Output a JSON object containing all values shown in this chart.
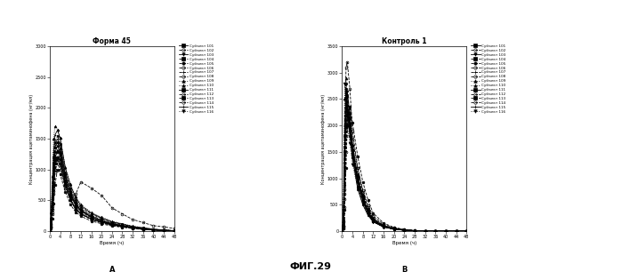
{
  "title_left": "Форма 45",
  "title_right": "Контроль 1",
  "fig_title": "ФИГ.29",
  "xlabel": "Время (ч)",
  "ylabel": "Концентрация ацетаминофена (нг/мл)",
  "label_A": "А",
  "label_B": "В",
  "xlim": [
    0,
    48
  ],
  "xticks": [
    0,
    4,
    8,
    12,
    16,
    20,
    24,
    28,
    32,
    36,
    40,
    44,
    48
  ],
  "ylim_left": [
    0,
    3000
  ],
  "ylim_right": [
    0,
    3500
  ],
  "yticks_left": [
    0,
    500,
    1000,
    1500,
    2000,
    2500,
    3000
  ],
  "yticks_right": [
    0,
    500,
    1000,
    1500,
    2000,
    2500,
    3000,
    3500
  ],
  "subjects": [
    "Субъект 101",
    "Субъект 102",
    "Субъект 103",
    "Субъект 104",
    "Субъект 105",
    "Субъект 106",
    "Субъект 107",
    "Субъект 108",
    "Субъект 109",
    "Субъект 110",
    "Субъект 111",
    "Субъект 112",
    "Субъект 113",
    "Субъект 114",
    "Субъект 115",
    "Субъект 116"
  ],
  "time_points": [
    0,
    0.5,
    1,
    1.5,
    2,
    3,
    4,
    6,
    8,
    10,
    12,
    16,
    20,
    24,
    28,
    32,
    36,
    40,
    44,
    48
  ],
  "data_left": [
    [
      0,
      150,
      600,
      1100,
      1200,
      1300,
      1250,
      800,
      500,
      350,
      280,
      200,
      150,
      100,
      80,
      60,
      40,
      25,
      15,
      8
    ],
    [
      0,
      80,
      350,
      700,
      1000,
      1100,
      1000,
      700,
      500,
      600,
      800,
      700,
      580,
      380,
      280,
      190,
      140,
      90,
      70,
      45
    ],
    [
      0,
      120,
      500,
      850,
      1100,
      1200,
      1150,
      800,
      580,
      430,
      340,
      230,
      165,
      110,
      82,
      55,
      36,
      22,
      13,
      7
    ],
    [
      0,
      200,
      700,
      1200,
      1450,
      1550,
      1420,
      960,
      690,
      510,
      390,
      280,
      205,
      148,
      112,
      76,
      52,
      32,
      18,
      9
    ],
    [
      0,
      50,
      200,
      450,
      750,
      1000,
      920,
      640,
      430,
      310,
      245,
      165,
      120,
      84,
      65,
      43,
      28,
      17,
      10,
      5
    ],
    [
      0,
      100,
      400,
      800,
      1100,
      1200,
      1100,
      760,
      520,
      375,
      290,
      200,
      148,
      103,
      78,
      52,
      35,
      21,
      12,
      6
    ],
    [
      0,
      180,
      650,
      1150,
      1400,
      1500,
      1380,
      930,
      660,
      480,
      368,
      255,
      188,
      132,
      100,
      67,
      46,
      28,
      16,
      8
    ],
    [
      0,
      60,
      280,
      600,
      950,
      1150,
      1070,
      740,
      500,
      365,
      278,
      190,
      138,
      96,
      73,
      49,
      32,
      19,
      11,
      6
    ],
    [
      0,
      300,
      900,
      1500,
      1700,
      1650,
      1510,
      1040,
      760,
      565,
      435,
      305,
      228,
      162,
      122,
      83,
      57,
      35,
      19,
      10
    ],
    [
      0,
      90,
      380,
      770,
      1150,
      1280,
      1190,
      820,
      570,
      405,
      314,
      218,
      160,
      112,
      85,
      56,
      37,
      23,
      13,
      7
    ],
    [
      0,
      130,
      520,
      930,
      1280,
      1380,
      1280,
      875,
      610,
      435,
      335,
      230,
      168,
      117,
      88,
      59,
      39,
      24,
      14,
      7
    ],
    [
      0,
      70,
      300,
      650,
      1000,
      1180,
      1090,
      755,
      510,
      368,
      280,
      192,
      138,
      97,
      73,
      49,
      32,
      19,
      11,
      5
    ],
    [
      0,
      160,
      580,
      1030,
      1350,
      1450,
      1340,
      910,
      638,
      456,
      347,
      242,
      176,
      124,
      93,
      62,
      41,
      25,
      14,
      7
    ],
    [
      0,
      110,
      450,
      860,
      1200,
      1320,
      1230,
      845,
      588,
      421,
      320,
      222,
      162,
      114,
      86,
      57,
      38,
      23,
      13,
      7
    ],
    [
      0,
      220,
      750,
      1290,
      1560,
      1640,
      1510,
      1030,
      742,
      547,
      417,
      292,
      215,
      153,
      115,
      77,
      53,
      32,
      18,
      9
    ],
    [
      0,
      140,
      550,
      980,
      1350,
      1430,
      1330,
      908,
      631,
      454,
      346,
      241,
      176,
      124,
      93,
      62,
      41,
      25,
      14,
      7
    ]
  ],
  "data_right": [
    [
      0,
      200,
      1500,
      2600,
      2200,
      1800,
      1400,
      800,
      500,
      300,
      180,
      80,
      40,
      18,
      8,
      4,
      2,
      1,
      0,
      0
    ],
    [
      0,
      100,
      800,
      3100,
      3200,
      2700,
      1900,
      1200,
      750,
      450,
      250,
      110,
      50,
      22,
      10,
      5,
      2,
      1,
      0,
      0
    ],
    [
      0,
      150,
      1200,
      2500,
      2650,
      2200,
      1620,
      1020,
      640,
      380,
      215,
      95,
      46,
      21,
      9,
      4,
      2,
      1,
      0,
      0
    ],
    [
      0,
      250,
      1800,
      2800,
      2450,
      2020,
      1520,
      960,
      600,
      355,
      200,
      88,
      42,
      19,
      8,
      4,
      2,
      1,
      0,
      0
    ],
    [
      0,
      50,
      400,
      1200,
      2000,
      2350,
      2050,
      1420,
      930,
      590,
      340,
      155,
      72,
      33,
      15,
      7,
      3,
      2,
      1,
      0
    ],
    [
      0,
      180,
      1300,
      2200,
      2380,
      1960,
      1460,
      920,
      575,
      340,
      192,
      84,
      40,
      18,
      8,
      4,
      2,
      1,
      0,
      0
    ],
    [
      0,
      300,
      2000,
      2700,
      2280,
      1860,
      1380,
      860,
      535,
      315,
      177,
      77,
      37,
      17,
      7,
      3,
      2,
      1,
      0,
      0
    ],
    [
      0,
      80,
      600,
      1800,
      2160,
      2040,
      1545,
      1010,
      645,
      393,
      225,
      102,
      49,
      22,
      10,
      5,
      2,
      1,
      0,
      0
    ],
    [
      0,
      120,
      900,
      2000,
      2460,
      2140,
      1630,
      1070,
      688,
      419,
      242,
      110,
      53,
      24,
      11,
      5,
      2,
      1,
      0,
      0
    ],
    [
      0,
      350,
      2500,
      2900,
      2550,
      2060,
      1555,
      1000,
      625,
      368,
      208,
      92,
      44,
      20,
      9,
      4,
      2,
      1,
      0,
      0
    ],
    [
      0,
      200,
      1600,
      2700,
      2370,
      1950,
      1470,
      942,
      594,
      351,
      199,
      88,
      42,
      19,
      8,
      4,
      2,
      1,
      0,
      0
    ],
    [
      0,
      60,
      450,
      1500,
      2080,
      2250,
      1755,
      1190,
      780,
      490,
      285,
      133,
      64,
      29,
      13,
      6,
      3,
      1,
      1,
      0
    ],
    [
      0,
      140,
      1100,
      2300,
      2570,
      2160,
      1620,
      1060,
      676,
      404,
      232,
      104,
      50,
      23,
      10,
      5,
      2,
      1,
      0,
      0
    ],
    [
      0,
      90,
      700,
      1900,
      2270,
      2010,
      1525,
      1010,
      651,
      393,
      228,
      103,
      49,
      22,
      10,
      5,
      2,
      1,
      0,
      0
    ],
    [
      0,
      170,
      1400,
      2400,
      2330,
      1920,
      1445,
      944,
      598,
      354,
      200,
      89,
      43,
      19,
      8,
      4,
      2,
      1,
      0,
      0
    ],
    [
      0,
      400,
      2800,
      2450,
      1970,
      1660,
      1265,
      830,
      520,
      305,
      172,
      76,
      36,
      16,
      7,
      3,
      2,
      1,
      0,
      0
    ]
  ],
  "line_styles": [
    "-",
    "--",
    "-",
    "--",
    "--",
    "--",
    "--",
    "--",
    ":",
    ":",
    "-",
    "--",
    "--",
    "--",
    "-",
    ":"
  ],
  "markers": [
    "s",
    "o",
    "v",
    "s",
    "8",
    "o",
    "+",
    "o",
    "^",
    "^",
    "s",
    "o",
    "s",
    "o",
    "+",
    "v"
  ],
  "markersize": 2.0,
  "linewidth": 0.6,
  "background_color": "#ffffff"
}
